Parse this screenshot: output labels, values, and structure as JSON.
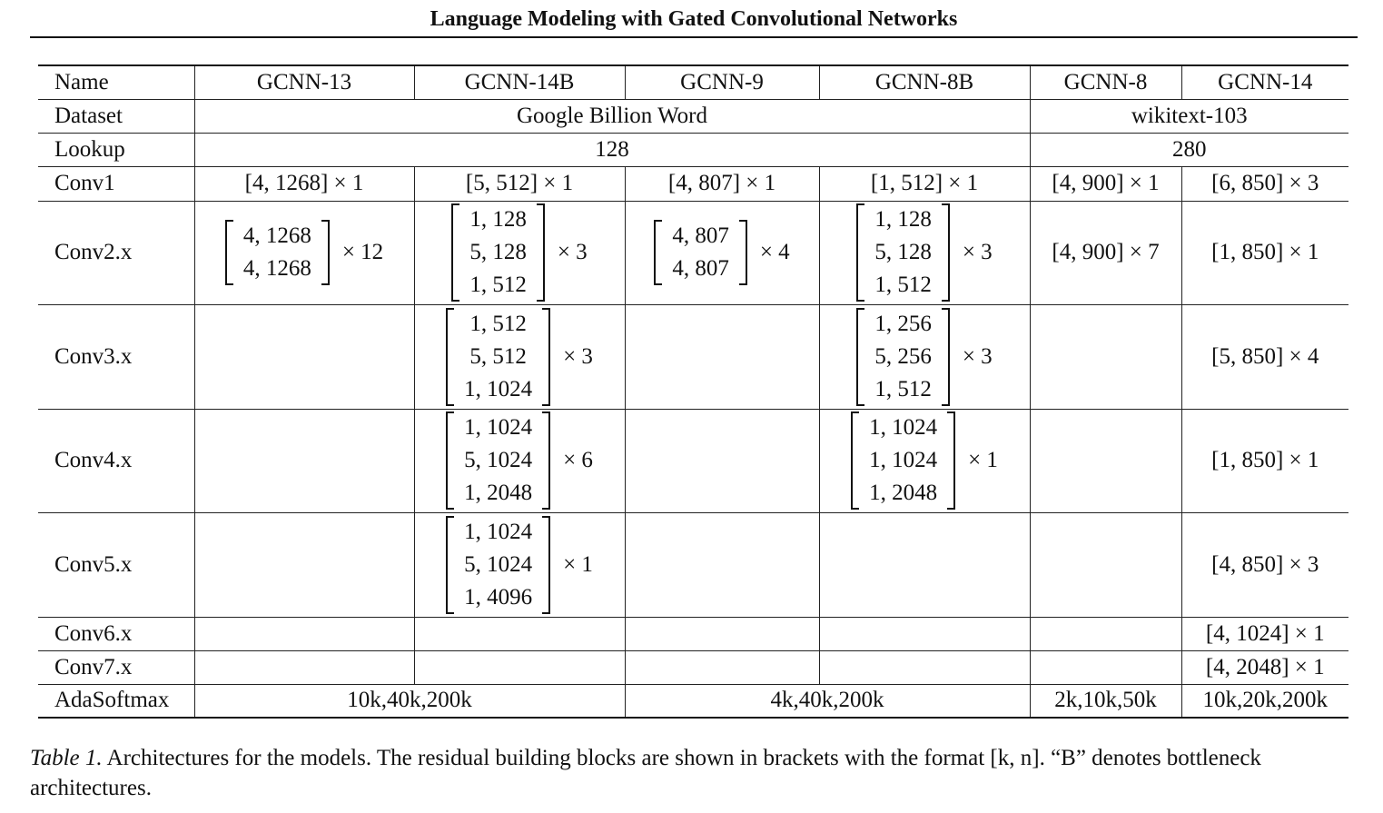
{
  "header": "Language Modeling with Gated Convolutional Networks",
  "table": {
    "row_names": {
      "name": "Name",
      "dataset": "Dataset",
      "lookup": "Lookup",
      "conv1": "Conv1",
      "conv2": "Conv2.x",
      "conv3": "Conv3.x",
      "conv4": "Conv4.x",
      "conv5": "Conv5.x",
      "conv6": "Conv6.x",
      "conv7": "Conv7.x",
      "adasoftmax": "AdaSoftmax"
    },
    "columns": [
      "GCNN-13",
      "GCNN-14B",
      "GCNN-9",
      "GCNN-8B",
      "GCNN-8",
      "GCNN-14"
    ],
    "dataset": [
      "Google Billion Word",
      "wikitext-103"
    ],
    "lookup": [
      "128",
      "280"
    ],
    "conv1": [
      "[4, 1268] × 1",
      "[5, 512] × 1",
      "[4, 807] × 1",
      "[1, 512] × 1",
      "[4, 900] × 1",
      "[6, 850] × 3"
    ],
    "conv2": {
      "gcnn13": {
        "rows": [
          "4, 1268",
          "4, 1268"
        ],
        "mult": "× 12"
      },
      "gcnn14b": {
        "rows": [
          "1, 128",
          "5, 128",
          "1, 512"
        ],
        "mult": "× 3"
      },
      "gcnn9": {
        "rows": [
          "4, 807",
          "4, 807"
        ],
        "mult": "× 4"
      },
      "gcnn8b": {
        "rows": [
          "1, 128",
          "5, 128",
          "1, 512"
        ],
        "mult": "× 3"
      },
      "gcnn8": "[4, 900] × 7",
      "gcnn14": "[1, 850] × 1"
    },
    "conv3": {
      "gcnn14b": {
        "rows": [
          "1, 512",
          "5, 512",
          "1, 1024"
        ],
        "mult": "× 3"
      },
      "gcnn8b": {
        "rows": [
          "1, 256",
          "5, 256",
          "1, 512"
        ],
        "mult": "× 3"
      },
      "gcnn14": "[5, 850] × 4"
    },
    "conv4": {
      "gcnn14b": {
        "rows": [
          "1, 1024",
          "5, 1024",
          "1, 2048"
        ],
        "mult": "× 6"
      },
      "gcnn8b": {
        "rows": [
          "1, 1024",
          "1, 1024",
          "1, 2048"
        ],
        "mult": "× 1"
      },
      "gcnn14": "[1, 850] × 1"
    },
    "conv5": {
      "gcnn14b": {
        "rows": [
          "1, 1024",
          "5, 1024",
          "1, 4096"
        ],
        "mult": "× 1"
      },
      "gcnn14": "[4, 850] × 3"
    },
    "conv6": {
      "gcnn14": "[4, 1024] × 1"
    },
    "conv7": {
      "gcnn14": "[4, 2048] × 1"
    },
    "adasoftmax": [
      "10k,40k,200k",
      "4k,40k,200k",
      "2k,10k,50k",
      "10k,20k,200k"
    ]
  },
  "caption": {
    "label": "Table 1.",
    "text": " Architectures for the models. The residual building blocks are shown in brackets with the format [k, n]. “B” denotes bottleneck architectures."
  }
}
